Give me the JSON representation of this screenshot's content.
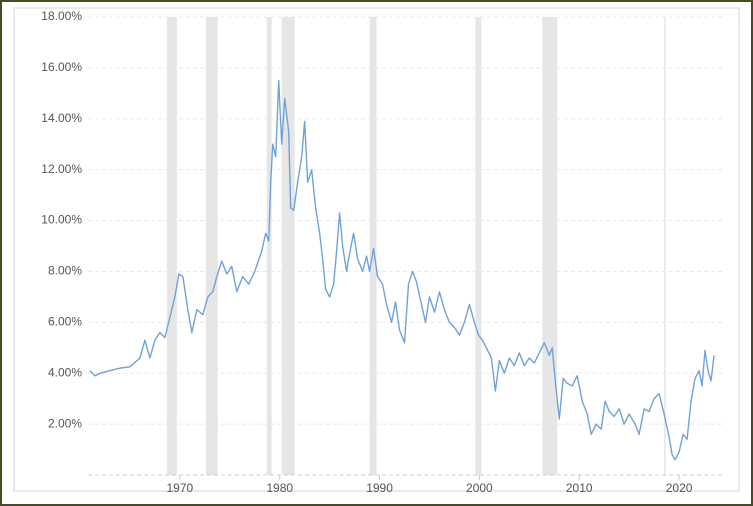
{
  "chart_data": {
    "type": "line",
    "color": "#6fa3d8",
    "shade_color": "#e6e6e6",
    "grid": true,
    "xlim": [
      1960.8,
      2024.6
    ],
    "xticks": [
      1970,
      1980,
      1990,
      2000,
      2010,
      2020
    ],
    "ylim": [
      0,
      18
    ],
    "yticks": [
      {
        "value": 2,
        "label": "2.00%"
      },
      {
        "value": 4,
        "label": "4.00%"
      },
      {
        "value": 6,
        "label": "6.00%"
      },
      {
        "value": 8,
        "label": "8.00%"
      },
      {
        "value": 10,
        "label": "10.00%"
      },
      {
        "value": 12,
        "label": "12.00%"
      },
      {
        "value": 14,
        "label": "14.00%"
      },
      {
        "value": 16,
        "label": "16.00%"
      },
      {
        "value": 18,
        "label": "18.00%"
      }
    ],
    "shaded_periods": [
      [
        1968.7,
        1969.7
      ],
      [
        1972.6,
        1973.8
      ],
      [
        1978.7,
        1979.2
      ],
      [
        1980.2,
        1981.5
      ],
      [
        1989.0,
        1989.7
      ],
      [
        1999.6,
        2000.2
      ],
      [
        2006.3,
        2007.8
      ],
      [
        2018.5,
        2018.6
      ]
    ],
    "x": [
      1961.0,
      1961.5,
      1962,
      1963,
      1964,
      1965,
      1966,
      1966.5,
      1967,
      1967.5,
      1968,
      1968.5,
      1969,
      1969.5,
      1969.9,
      1970.3,
      1970.8,
      1971.2,
      1971.7,
      1972.3,
      1972.8,
      1973.3,
      1973.7,
      1974.2,
      1974.7,
      1975.2,
      1975.7,
      1976.3,
      1976.9,
      1977.5,
      1978.2,
      1978.6,
      1978.9,
      1979.1,
      1979.3,
      1979.6,
      1979.9,
      1980.2,
      1980.5,
      1980.9,
      1981.1,
      1981.4,
      1981.8,
      1982.2,
      1982.5,
      1982.8,
      1983.2,
      1983.6,
      1984.0,
      1984.3,
      1984.6,
      1985.0,
      1985.4,
      1985.7,
      1986.0,
      1986.3,
      1986.7,
      1987.0,
      1987.4,
      1987.8,
      1988.3,
      1988.7,
      1989.0,
      1989.4,
      1989.8,
      1990.3,
      1990.7,
      1991.2,
      1991.6,
      1992.0,
      1992.5,
      1992.9,
      1993.3,
      1993.7,
      1994.2,
      1994.6,
      1995.0,
      1995.5,
      1996.0,
      1996.5,
      1997.0,
      1997.5,
      1998.0,
      1998.5,
      1999.0,
      1999.5,
      1999.9,
      2000.3,
      2000.7,
      2001.2,
      2001.6,
      2002.0,
      2002.5,
      2003.0,
      2003.5,
      2004.0,
      2004.5,
      2005.0,
      2005.5,
      2006.0,
      2006.5,
      2007.0,
      2007.3,
      2007.6,
      2008.0,
      2008.4,
      2008.8,
      2009.3,
      2009.8,
      2010.3,
      2010.8,
      2011.2,
      2011.7,
      2012.2,
      2012.6,
      2013.0,
      2013.5,
      2014.0,
      2014.5,
      2015.0,
      2015.6,
      2016.0,
      2016.5,
      2017.0,
      2017.5,
      2018.0,
      2018.5,
      2019.0,
      2019.3,
      2019.6,
      2020.0,
      2020.4,
      2020.8,
      2021.2,
      2021.6,
      2022.0,
      2022.3,
      2022.6,
      2022.9,
      2023.2,
      2023.5
    ],
    "values": [
      4.1,
      3.9,
      4.0,
      4.1,
      4.2,
      4.25,
      4.6,
      5.3,
      4.6,
      5.3,
      5.6,
      5.4,
      6.2,
      7.0,
      7.9,
      7.8,
      6.5,
      5.6,
      6.5,
      6.3,
      7.0,
      7.2,
      7.8,
      8.4,
      7.9,
      8.2,
      7.2,
      7.8,
      7.5,
      8.0,
      8.8,
      9.5,
      9.2,
      11.5,
      13.0,
      12.5,
      15.5,
      13.0,
      14.8,
      13.5,
      10.5,
      10.4,
      11.5,
      12.5,
      13.9,
      11.5,
      12.0,
      10.5,
      9.5,
      8.5,
      7.3,
      7.0,
      7.5,
      8.8,
      10.3,
      9.0,
      8.0,
      8.7,
      9.5,
      8.5,
      8.0,
      8.6,
      8.0,
      8.9,
      7.8,
      7.5,
      6.7,
      6.0,
      6.8,
      5.7,
      5.2,
      7.5,
      8.0,
      7.6,
      6.7,
      6.0,
      7.0,
      6.4,
      7.2,
      6.5,
      6.0,
      5.8,
      5.5,
      6.0,
      6.7,
      6.0,
      5.5,
      5.3,
      5.0,
      4.6,
      3.3,
      4.5,
      4.0,
      4.6,
      4.3,
      4.8,
      4.3,
      4.6,
      4.4,
      4.8,
      5.2,
      4.7,
      5.0,
      3.7,
      2.2,
      3.8,
      3.6,
      3.5,
      3.9,
      2.9,
      2.4,
      1.6,
      2.0,
      1.8,
      2.9,
      2.5,
      2.3,
      2.6,
      2.0,
      2.4,
      2.0,
      1.6,
      2.6,
      2.5,
      3.0,
      3.2,
      2.4,
      1.5,
      0.8,
      0.6,
      0.9,
      1.6,
      1.4,
      2.9,
      3.8,
      4.1,
      3.5,
      4.9,
      4.1,
      3.7,
      4.7
    ]
  }
}
